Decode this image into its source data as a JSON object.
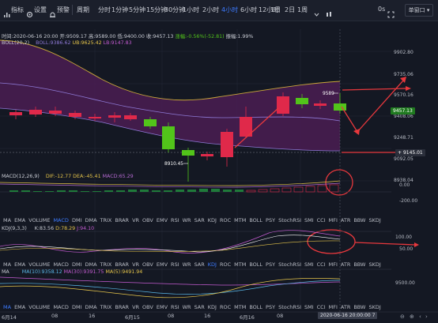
{
  "toolbar": {
    "indicator_label": "指标",
    "settings_label": "设置",
    "alert_label": "预警",
    "period_label": "周期",
    "periods": [
      "分时",
      "1分钟",
      "5分钟",
      "15分钟",
      "30分钟",
      "1小时",
      "2小时",
      "4小时",
      "6小时",
      "12小时",
      "1日",
      "2日",
      "1周"
    ],
    "selected_period": "4小时",
    "zoom_label": "0s",
    "window_label": "单窗口"
  },
  "ohlc": {
    "time": "时间:2020-06-16 20:00",
    "open": "开:9509.17",
    "high": "高:9589.00",
    "low": "低:9400.00",
    "close": "收:9457.13",
    "change": "涨幅:-0.56%(-52.81)",
    "amplitude": "振幅:1.99%"
  },
  "boll": {
    "name": "BOLL(20,2)",
    "mid": "BOLL:9386.62",
    "ub": "UB:9625.42",
    "lb": "LB:9147.83"
  },
  "price_axis": [
    "9902.80",
    "9735.06",
    "9570.16",
    "9408.06",
    "9248.71",
    "9092.05",
    "8938.04"
  ],
  "last_price": "9457.13",
  "marker_price": "9145.01",
  "high_marker": "9589",
  "low_marker": "8910.45",
  "macd": {
    "name": "MACD(12,26,9)",
    "dif": "DIF:-12.77",
    "dea": "DEA:-45.41",
    "macd": "MACD:65.29",
    "axis": [
      "0.00",
      "-200.00"
    ]
  },
  "kdj": {
    "name": "KDJ(9,3,3)",
    "k": "K:83.56",
    "d": "D:78.29",
    "j": "J:94.10",
    "axis": [
      "100.00",
      "50.00"
    ]
  },
  "ma": {
    "name": "MA",
    "ma10": "MA(10):9358.12",
    "ma30": "MA(30):9391.75",
    "ma5": "MA(5):9491.94",
    "axis": [
      "9500.00"
    ]
  },
  "indicator_tabs": [
    "MA",
    "EMA",
    "VOLUME",
    "MACD",
    "DMI",
    "DMA",
    "TRIX",
    "BRAR",
    "VR",
    "OBV",
    "EMV",
    "RSI",
    "WR",
    "SAR",
    "KDJ",
    "ROC",
    "MTM",
    "BOLL",
    "PSY",
    "StochRSI",
    "SMI",
    "CCI",
    "MFI",
    "ATR",
    "BBW",
    "SKDJ"
  ],
  "active_tabs": {
    "macd_pane": "MACD",
    "kdj_pane": "KDJ",
    "ma_pane": "MA"
  },
  "x_axis": [
    "6月14",
    "08",
    "16",
    "6月15",
    "08",
    "16",
    "6月16",
    "08"
  ],
  "cursor_time": "2020-06-16 20:00:00",
  "cursor_suffix": "7",
  "colors": {
    "up": "#e0294a",
    "down": "#52c41a",
    "accent": "#3d7bff",
    "annotation": "#e8383d"
  }
}
